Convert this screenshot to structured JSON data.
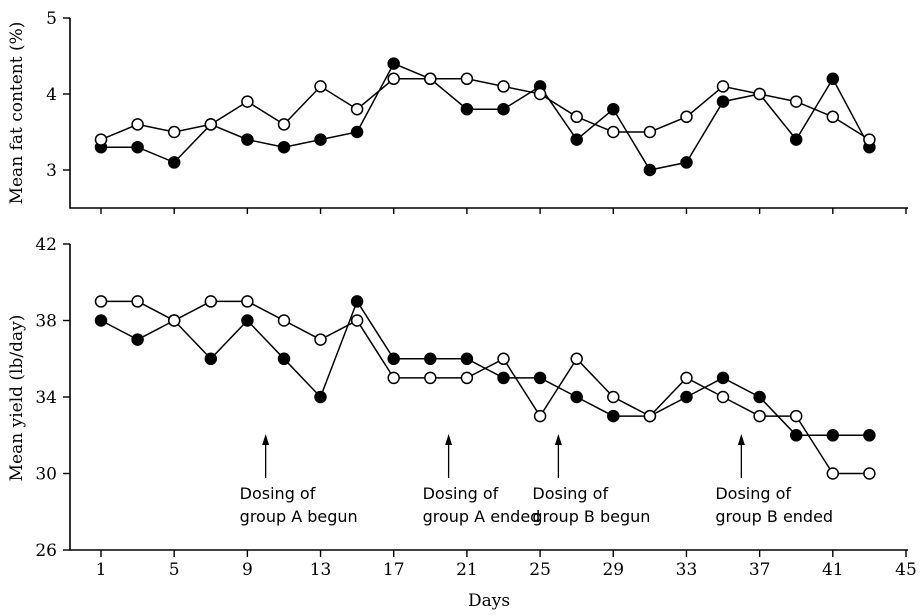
{
  "chart_data": [
    {
      "type": "line",
      "ylabel": "Mean fat content (%)",
      "ylim": [
        2.5,
        5
      ],
      "xlim": [
        1,
        45
      ],
      "yticks": [
        3,
        4,
        5
      ],
      "x": [
        1,
        3,
        5,
        7,
        9,
        11,
        13,
        15,
        17,
        19,
        21,
        23,
        25,
        27,
        29,
        31,
        33,
        35,
        37,
        39,
        41,
        43
      ],
      "series": [
        {
          "marker": "filled",
          "values": [
            3.3,
            3.3,
            3.1,
            3.6,
            3.4,
            3.3,
            3.4,
            3.5,
            4.4,
            4.2,
            3.8,
            3.8,
            4.1,
            3.4,
            3.8,
            3.0,
            3.1,
            3.9,
            4.0,
            3.4,
            4.2,
            3.3
          ]
        },
        {
          "marker": "open",
          "values": [
            3.4,
            3.6,
            3.5,
            3.6,
            3.9,
            3.6,
            4.1,
            3.8,
            4.2,
            4.2,
            4.2,
            4.1,
            4.0,
            3.7,
            3.5,
            3.5,
            3.7,
            4.1,
            4.0,
            3.9,
            3.7,
            3.4
          ]
        }
      ]
    },
    {
      "type": "line",
      "ylabel": "Mean yield (lb/day)",
      "xlabel": "Days",
      "ylim": [
        26,
        42
      ],
      "xlim": [
        1,
        45
      ],
      "yticks": [
        26,
        30,
        34,
        38,
        42
      ],
      "xticks": [
        1,
        5,
        9,
        13,
        17,
        21,
        25,
        29,
        33,
        37,
        41,
        45
      ],
      "x": [
        1,
        3,
        5,
        7,
        9,
        11,
        13,
        15,
        17,
        19,
        21,
        23,
        25,
        27,
        29,
        31,
        33,
        35,
        37,
        39,
        41,
        43
      ],
      "series": [
        {
          "marker": "filled",
          "values": [
            38,
            37,
            38,
            36,
            38,
            36,
            34,
            39,
            36,
            36,
            36,
            35,
            35,
            34,
            33,
            33,
            34,
            35,
            34,
            32,
            32,
            32
          ]
        },
        {
          "marker": "open",
          "values": [
            39,
            39,
            38,
            39,
            39,
            38,
            37,
            38,
            35,
            35,
            35,
            36,
            33,
            36,
            34,
            33,
            35,
            34,
            33,
            33,
            30,
            30
          ]
        }
      ],
      "annotations": [
        {
          "day": 10,
          "lines": [
            "Dosing of",
            "group A begun"
          ]
        },
        {
          "day": 20,
          "lines": [
            "Dosing of",
            "group A ended"
          ]
        },
        {
          "day": 26,
          "lines": [
            "Dosing of",
            "group B begun"
          ]
        },
        {
          "day": 36,
          "lines": [
            "Dosing of",
            "group B ended"
          ]
        }
      ]
    }
  ]
}
